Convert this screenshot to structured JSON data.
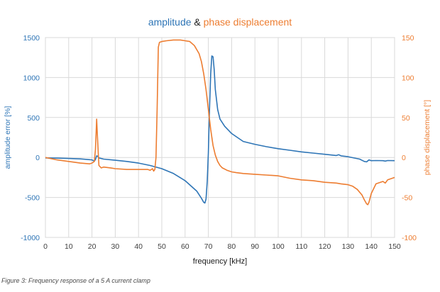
{
  "colors": {
    "amplitude": "#2E75B6",
    "phase": "#ED7D31",
    "grid": "#D9D9D9",
    "axis_text": "#404040"
  },
  "caption": "Figure 3: Frequency response of a 5 A current clamp",
  "chart_data": {
    "type": "line",
    "title": {
      "part1": "amplitude",
      "joiner": " & ",
      "part2": "phase displacement"
    },
    "xlabel": "frequency [kHz]",
    "ylabel_left": "amplitude error [%]",
    "ylabel_right": "phase displacement [°]",
    "xlim": [
      0,
      150
    ],
    "ylim_left": [
      -1000,
      1500
    ],
    "ylim_right": [
      -100,
      150
    ],
    "xticks": [
      "0",
      "10",
      "20",
      "30",
      "40",
      "50",
      "60",
      "70",
      "80",
      "90",
      "100",
      "110",
      "120",
      "130",
      "140",
      "150"
    ],
    "yticks_left": [
      "1500",
      "1000",
      "500",
      "0",
      "-500",
      "-1000"
    ],
    "yticks_right": [
      "150",
      "100",
      "50",
      "0",
      "-50",
      "-100"
    ],
    "grid": true,
    "series": [
      {
        "name": "amplitude",
        "axis": "left",
        "x": [
          0,
          5,
          10,
          15,
          20,
          21,
          21.5,
          22,
          22.5,
          23,
          25,
          30,
          35,
          40,
          45,
          50,
          55,
          60,
          65,
          67,
          68,
          68.5,
          69,
          69.5,
          70,
          70.5,
          71,
          71.5,
          72,
          72.5,
          73,
          74,
          75,
          77,
          80,
          83,
          85,
          90,
          95,
          100,
          105,
          110,
          115,
          120,
          125,
          126,
          127,
          130,
          135,
          137,
          138,
          139,
          140,
          142,
          145,
          146,
          147,
          150
        ],
        "y": [
          -5,
          -8,
          -12,
          -18,
          -30,
          -45,
          -25,
          20,
          15,
          -5,
          -20,
          -35,
          -50,
          -70,
          -100,
          -140,
          -200,
          -290,
          -420,
          -510,
          -560,
          -570,
          -520,
          -300,
          60,
          600,
          1050,
          1270,
          1260,
          1100,
          850,
          600,
          480,
          390,
          300,
          240,
          200,
          165,
          135,
          110,
          90,
          70,
          55,
          40,
          25,
          35,
          20,
          10,
          -20,
          -50,
          -55,
          -30,
          -40,
          -38,
          -40,
          -45,
          -38,
          -40
        ]
      },
      {
        "name": "phase displacement",
        "axis": "right",
        "x": [
          0,
          5,
          10,
          15,
          19,
          20,
          21,
          21.5,
          22,
          22.3,
          22.7,
          23,
          24,
          25,
          28,
          30,
          35,
          40,
          44,
          45,
          46,
          46.5,
          47,
          47.5,
          48,
          48.5,
          49,
          50,
          52,
          55,
          58,
          60,
          62,
          64,
          66,
          67,
          68,
          69,
          70,
          71,
          72,
          73,
          74,
          75,
          76,
          78,
          80,
          82,
          85,
          90,
          95,
          100,
          105,
          110,
          115,
          120,
          125,
          127,
          130,
          132,
          134,
          136,
          137,
          138,
          138.5,
          139,
          140,
          142,
          145,
          146,
          147,
          150
        ],
        "y": [
          0,
          -3,
          -5,
          -7,
          -8,
          -7,
          -5,
          10,
          48,
          30,
          5,
          -10,
          -13,
          -12,
          -13,
          -14,
          -15,
          -15,
          -15,
          -16,
          -14,
          -17,
          -15,
          0,
          60,
          138,
          144,
          145,
          146,
          147,
          147,
          146,
          145,
          140,
          130,
          120,
          105,
          85,
          60,
          35,
          15,
          3,
          -5,
          -10,
          -13,
          -16,
          -18,
          -19,
          -20,
          -21,
          -22,
          -23,
          -26,
          -28,
          -29,
          -31,
          -32,
          -33,
          -34,
          -36,
          -40,
          -47,
          -53,
          -58,
          -59,
          -56,
          -45,
          -33,
          -30,
          -32,
          -28,
          -25
        ]
      }
    ]
  }
}
